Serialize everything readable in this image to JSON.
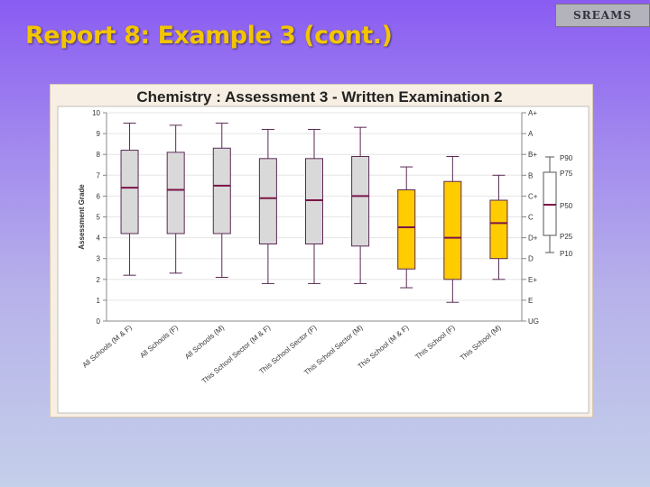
{
  "slide": {
    "title": "Report 8: Example 3 (cont.)",
    "logo_text": "SREAMS"
  },
  "colors": {
    "grey_box": "#d9d9d9",
    "gold_box": "#ffcc00",
    "median": "#7b1448",
    "whisker": "#5a2a55",
    "gridline": "#e6e6e6"
  },
  "chart_data": {
    "type": "box",
    "title": "Chemistry : Assessment 3 - Written Examination 2",
    "ylabel": "Assessment Grade",
    "xlabel": "",
    "ylim": [
      0,
      10
    ],
    "grid": true,
    "yticks": [
      0,
      1,
      2,
      3,
      4,
      5,
      6,
      7,
      8,
      9,
      10
    ],
    "right_ticks": [
      {
        "y": 10,
        "label": "A+"
      },
      {
        "y": 9,
        "label": "A"
      },
      {
        "y": 8,
        "label": "B+"
      },
      {
        "y": 7,
        "label": "B"
      },
      {
        "y": 6,
        "label": "C+"
      },
      {
        "y": 5,
        "label": "C"
      },
      {
        "y": 4,
        "label": "D+"
      },
      {
        "y": 3,
        "label": "D"
      },
      {
        "y": 2,
        "label": "E+"
      },
      {
        "y": 1,
        "label": "E"
      },
      {
        "y": 0,
        "label": "UG"
      }
    ],
    "legend": [
      "P90",
      "P75",
      "P50",
      "P25",
      "P10"
    ],
    "categories": [
      "All Schools (M & F)",
      "All Schools (F)",
      "All Schools (M)",
      "This School Sector (M & F)",
      "This School Sector (F)",
      "This School Sector (M)",
      "This School (M & F)",
      "This School (F)",
      "This School (M)"
    ],
    "boxes": [
      {
        "p10": 2.2,
        "p25": 4.2,
        "p50": 6.4,
        "p75": 8.2,
        "p90": 9.5,
        "group": "grey"
      },
      {
        "p10": 2.3,
        "p25": 4.2,
        "p50": 6.3,
        "p75": 8.1,
        "p90": 9.4,
        "group": "grey"
      },
      {
        "p10": 2.1,
        "p25": 4.2,
        "p50": 6.5,
        "p75": 8.3,
        "p90": 9.5,
        "group": "grey"
      },
      {
        "p10": 1.8,
        "p25": 3.7,
        "p50": 5.9,
        "p75": 7.8,
        "p90": 9.2,
        "group": "grey"
      },
      {
        "p10": 1.8,
        "p25": 3.7,
        "p50": 5.8,
        "p75": 7.8,
        "p90": 9.2,
        "group": "grey"
      },
      {
        "p10": 1.8,
        "p25": 3.6,
        "p50": 6.0,
        "p75": 7.9,
        "p90": 9.3,
        "group": "grey"
      },
      {
        "p10": 1.6,
        "p25": 2.5,
        "p50": 4.5,
        "p75": 6.3,
        "p90": 7.4,
        "group": "gold"
      },
      {
        "p10": 0.9,
        "p25": 2.0,
        "p50": 4.0,
        "p75": 6.7,
        "p90": 7.9,
        "group": "gold"
      },
      {
        "p10": 2.0,
        "p25": 3.0,
        "p50": 4.7,
        "p75": 5.8,
        "p90": 7.0,
        "group": "gold"
      }
    ]
  }
}
